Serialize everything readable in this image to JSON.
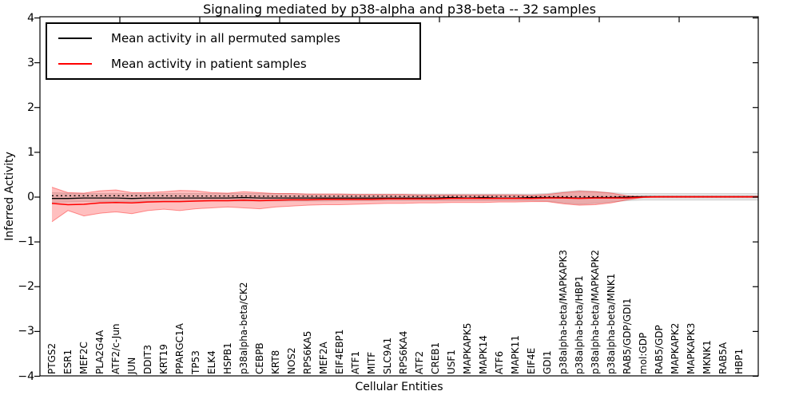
{
  "chart_data": {
    "type": "line",
    "title": "Signaling mediated by p38-alpha and p38-beta -- 32 samples",
    "xlabel": "Cellular Entities",
    "ylabel": "Inferred Activity",
    "ylim": [
      -4,
      4
    ],
    "yticks": [
      4,
      3,
      2,
      1,
      0,
      -1,
      -2,
      -3,
      -4
    ],
    "ytick_labels": [
      "4",
      "3",
      "2",
      "1",
      "0",
      "−1",
      "−2",
      "−3",
      "−4"
    ],
    "grid": false,
    "legend_position": "upper-left",
    "categories": [
      "PTGS2",
      "ESR1",
      "MEF2C",
      "PLA2G4A",
      "ATF2/c-Jun",
      "JUN",
      "DDIT3",
      "KRT19",
      "PPARGC1A",
      "TP53",
      "ELK4",
      "HSPB1",
      "p38alpha-beta/CK2",
      "CEBPB",
      "KRT8",
      "NOS2",
      "RPS6KA5",
      "MEF2A",
      "EIF4EBP1",
      "ATF1",
      "MITF",
      "SLC9A1",
      "RPS6KA4",
      "ATF2",
      "CREB1",
      "USF1",
      "MAPKAPK5",
      "MAPK14",
      "ATF6",
      "MAPK11",
      "EIF4E",
      "GDI1",
      "p38alpha-beta/MAPKAPK3",
      "p38alpha-beta/HBP1",
      "p38alpha-beta/MAPKAPK2",
      "p38alpha-beta/MNK1",
      "RAB5/GDP/GDI1",
      "mol:GDP",
      "RAB5/GDP",
      "MAPKAPK2",
      "MAPKAPK3",
      "MKNK1",
      "RAB5A",
      "HBP1"
    ],
    "series": [
      {
        "name": "Mean activity in all permuted samples",
        "color": "#000000",
        "style": "solid",
        "values": [
          -0.03,
          -0.03,
          -0.02,
          -0.02,
          -0.02,
          -0.03,
          -0.02,
          -0.02,
          -0.02,
          -0.02,
          -0.02,
          -0.02,
          -0.01,
          -0.02,
          -0.02,
          -0.02,
          -0.02,
          -0.02,
          -0.02,
          -0.02,
          -0.02,
          -0.02,
          -0.02,
          -0.02,
          -0.02,
          -0.01,
          -0.02,
          -0.01,
          -0.02,
          -0.02,
          -0.01,
          -0.01,
          -0.01,
          -0.02,
          -0.01,
          -0.01,
          0.0,
          0.01,
          0.01,
          0.01,
          0.01,
          0.01,
          0.01,
          0.01
        ]
      },
      {
        "name": "Mean activity in patient samples",
        "color": "#ff0000",
        "style": "solid",
        "values": [
          -0.14,
          -0.17,
          -0.16,
          -0.13,
          -0.12,
          -0.13,
          -0.11,
          -0.1,
          -0.1,
          -0.09,
          -0.08,
          -0.08,
          -0.07,
          -0.08,
          -0.07,
          -0.06,
          -0.06,
          -0.05,
          -0.05,
          -0.05,
          -0.05,
          -0.04,
          -0.04,
          -0.04,
          -0.04,
          -0.03,
          -0.03,
          -0.03,
          -0.03,
          -0.03,
          -0.03,
          -0.02,
          -0.02,
          -0.03,
          -0.02,
          -0.02,
          -0.02,
          0.0,
          0.01,
          0.01,
          0.01,
          0.01,
          0.01,
          0.01
        ]
      },
      {
        "name": "zero-reference-dotted",
        "color": "#000000",
        "style": "dotted",
        "in_legend": false,
        "values": [
          0.03,
          0.03,
          0.03,
          0.03,
          0.03,
          0.03,
          0.03,
          0.03,
          0.025,
          0.025,
          0.025,
          0.025,
          0.025,
          0.02,
          0.02,
          0.02,
          0.02,
          0.02,
          0.02,
          0.02,
          0.02,
          0.02,
          0.015,
          0.015,
          0.015,
          0.015,
          0.015,
          0.015,
          0.015,
          0.015,
          0.01,
          0.01,
          0.01,
          0.01,
          0.01,
          0.01,
          0.01,
          0.01,
          0.01,
          0.01,
          0.01,
          0.01,
          0.01,
          0.01
        ]
      }
    ],
    "bands": [
      {
        "name": "permuted-samples-std-band",
        "fill": "rgba(0,0,0,0.10)",
        "edge": "rgba(0,0,0,0.12)",
        "upper": [
          0.1,
          0.09,
          0.08,
          0.08,
          0.08,
          0.08,
          0.08,
          0.08,
          0.08,
          0.08,
          0.08,
          0.08,
          0.08,
          0.08,
          0.08,
          0.08,
          0.07,
          0.07,
          0.07,
          0.07,
          0.07,
          0.07,
          0.07,
          0.07,
          0.07,
          0.07,
          0.07,
          0.07,
          0.07,
          0.07,
          0.07,
          0.08,
          0.12,
          0.15,
          0.13,
          0.1,
          0.08,
          0.08,
          0.08,
          0.08,
          0.08,
          0.08,
          0.08,
          0.08
        ],
        "lower": [
          -0.12,
          -0.11,
          -0.1,
          -0.1,
          -0.1,
          -0.1,
          -0.1,
          -0.1,
          -0.1,
          -0.09,
          -0.09,
          -0.09,
          -0.09,
          -0.09,
          -0.09,
          -0.09,
          -0.09,
          -0.09,
          -0.08,
          -0.08,
          -0.08,
          -0.08,
          -0.08,
          -0.08,
          -0.08,
          -0.08,
          -0.08,
          -0.08,
          -0.08,
          -0.08,
          -0.08,
          -0.09,
          -0.13,
          -0.16,
          -0.14,
          -0.11,
          -0.08,
          -0.07,
          -0.07,
          -0.07,
          -0.07,
          -0.07,
          -0.07,
          -0.07
        ]
      },
      {
        "name": "patient-samples-std-band",
        "fill": "rgba(255,0,0,0.25)",
        "edge": "rgba(255,0,0,0.40)",
        "upper": [
          0.22,
          0.1,
          0.09,
          0.14,
          0.16,
          0.1,
          0.1,
          0.12,
          0.15,
          0.14,
          0.1,
          0.09,
          0.12,
          0.1,
          0.08,
          0.08,
          0.07,
          0.07,
          0.07,
          0.06,
          0.06,
          0.06,
          0.06,
          0.05,
          0.05,
          0.05,
          0.05,
          0.05,
          0.05,
          0.05,
          0.04,
          0.06,
          0.1,
          0.13,
          0.12,
          0.09,
          0.03,
          0.015,
          0.015,
          0.015,
          0.015,
          0.015,
          0.015,
          0.015
        ],
        "lower": [
          -0.55,
          -0.3,
          -0.42,
          -0.36,
          -0.33,
          -0.37,
          -0.3,
          -0.27,
          -0.3,
          -0.26,
          -0.24,
          -0.22,
          -0.24,
          -0.26,
          -0.22,
          -0.2,
          -0.18,
          -0.17,
          -0.17,
          -0.16,
          -0.15,
          -0.14,
          -0.14,
          -0.13,
          -0.13,
          -0.12,
          -0.12,
          -0.12,
          -0.11,
          -0.11,
          -0.1,
          -0.1,
          -0.15,
          -0.18,
          -0.17,
          -0.13,
          -0.06,
          -0.01,
          -0.01,
          -0.01,
          -0.01,
          -0.01,
          -0.01,
          -0.01
        ]
      }
    ],
    "legend": [
      {
        "label": "Mean activity in all permuted samples",
        "color": "#000000"
      },
      {
        "label": "Mean activity in patient samples",
        "color": "#ff0000"
      }
    ]
  }
}
